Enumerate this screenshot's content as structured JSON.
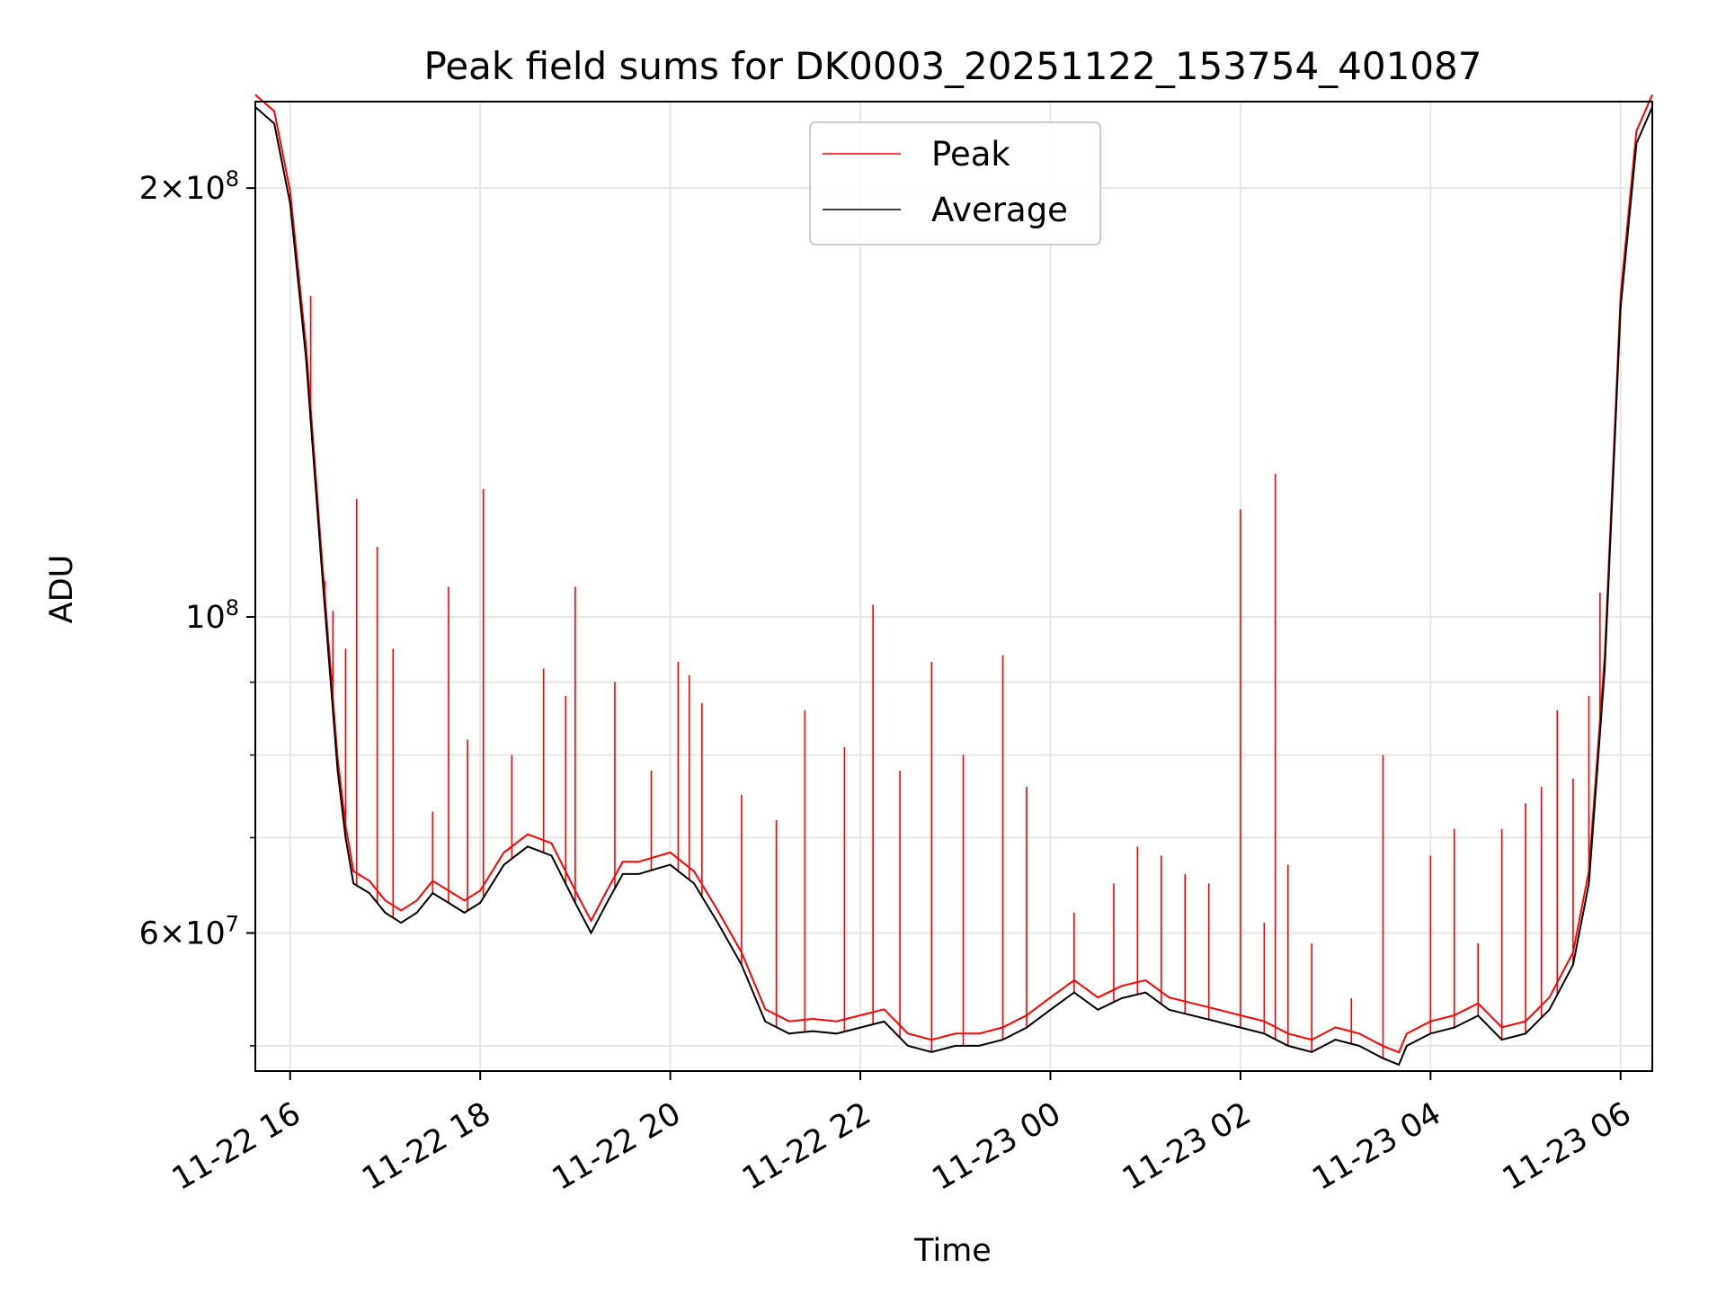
{
  "chart_data": {
    "type": "line",
    "title": "Peak field sums for DK0003_20251122_153754_401087",
    "xlabel": "Time",
    "ylabel": "ADU",
    "y_scale": "log",
    "ylim": [
      48000000,
      230000000
    ],
    "xlim": [
      "2025-11-22 15:38",
      "2025-11-23 06:20"
    ],
    "grid": true,
    "legend": "upper center",
    "x_ticks": [
      "11-22 16",
      "11-22 18",
      "11-22 20",
      "11-22 22",
      "11-23 00",
      "11-23 02",
      "11-23 04",
      "11-23 06"
    ],
    "x_tick_times": [
      "2025-11-22 16:00",
      "2025-11-22 18:00",
      "2025-11-22 20:00",
      "2025-11-22 22:00",
      "2025-11-23 00:00",
      "2025-11-23 02:00",
      "2025-11-23 04:00",
      "2025-11-23 06:00"
    ],
    "y_ticks": [
      {
        "value": 60000000,
        "mantissa": "6",
        "exponent": "7"
      },
      {
        "value": 100000000,
        "mantissa": "",
        "exponent": "8"
      },
      {
        "value": 200000000,
        "mantissa": "2",
        "exponent": "8"
      }
    ],
    "y_minor_ticks": [
      50000000,
      70000000,
      80000000,
      90000000
    ],
    "series": [
      {
        "name": "Average",
        "color": "#000000",
        "x": [
          "2025-11-22 15:38",
          "2025-11-22 15:50",
          "2025-11-22 16:00",
          "2025-11-22 16:10",
          "2025-11-22 16:20",
          "2025-11-22 16:30",
          "2025-11-22 16:35",
          "2025-11-22 16:40",
          "2025-11-22 16:50",
          "2025-11-22 17:00",
          "2025-11-22 17:10",
          "2025-11-22 17:20",
          "2025-11-22 17:30",
          "2025-11-22 17:40",
          "2025-11-22 17:50",
          "2025-11-22 18:00",
          "2025-11-22 18:15",
          "2025-11-22 18:30",
          "2025-11-22 18:45",
          "2025-11-22 19:00",
          "2025-11-22 19:10",
          "2025-11-22 19:20",
          "2025-11-22 19:30",
          "2025-11-22 19:40",
          "2025-11-22 19:50",
          "2025-11-22 20:00",
          "2025-11-22 20:15",
          "2025-11-22 20:30",
          "2025-11-22 20:45",
          "2025-11-22 21:00",
          "2025-11-22 21:15",
          "2025-11-22 21:30",
          "2025-11-22 21:45",
          "2025-11-22 22:00",
          "2025-11-22 22:15",
          "2025-11-22 22:30",
          "2025-11-22 22:45",
          "2025-11-22 23:00",
          "2025-11-22 23:15",
          "2025-11-22 23:30",
          "2025-11-22 23:45",
          "2025-11-23 00:00",
          "2025-11-23 00:15",
          "2025-11-23 00:30",
          "2025-11-23 00:45",
          "2025-11-23 01:00",
          "2025-11-23 01:15",
          "2025-11-23 01:30",
          "2025-11-23 01:45",
          "2025-11-23 02:00",
          "2025-11-23 02:15",
          "2025-11-23 02:30",
          "2025-11-23 02:45",
          "2025-11-23 03:00",
          "2025-11-23 03:15",
          "2025-11-23 03:30",
          "2025-11-23 03:40",
          "2025-11-23 03:45",
          "2025-11-23 04:00",
          "2025-11-23 04:15",
          "2025-11-23 04:30",
          "2025-11-23 04:45",
          "2025-11-23 05:00",
          "2025-11-23 05:15",
          "2025-11-23 05:30",
          "2025-11-23 05:40",
          "2025-11-23 05:50",
          "2025-11-23 06:00",
          "2025-11-23 06:10",
          "2025-11-23 06:20"
        ],
        "values": [
          228000000,
          222000000,
          195000000,
          152000000,
          108000000,
          78000000,
          70000000,
          65000000,
          64000000,
          62000000,
          61000000,
          62000000,
          64000000,
          63000000,
          62000000,
          63000000,
          67000000,
          69000000,
          68000000,
          63000000,
          60000000,
          63000000,
          66000000,
          66000000,
          66500000,
          67000000,
          65000000,
          61000000,
          57000000,
          52000000,
          51000000,
          51200000,
          51000000,
          51500000,
          52000000,
          50000000,
          49500000,
          50000000,
          50000000,
          50500000,
          51500000,
          53000000,
          54500000,
          53000000,
          54000000,
          54500000,
          53000000,
          52500000,
          52000000,
          51500000,
          51000000,
          50000000,
          49500000,
          50500000,
          50000000,
          49000000,
          48500000,
          50000000,
          51000000,
          51500000,
          52500000,
          50500000,
          51000000,
          53000000,
          57000000,
          65000000,
          92000000,
          165000000,
          215000000,
          228000000
        ]
      },
      {
        "name": "Peak",
        "color": "#ff0000",
        "x": [
          "2025-11-22 16:00",
          "2025-11-22 16:13",
          "2025-11-22 16:22",
          "2025-11-22 16:27",
          "2025-11-22 16:35",
          "2025-11-22 16:42",
          "2025-11-22 16:55",
          "2025-11-22 17:05",
          "2025-11-22 17:30",
          "2025-11-22 17:40",
          "2025-11-22 17:52",
          "2025-11-22 18:02",
          "2025-11-22 18:20",
          "2025-11-22 18:40",
          "2025-11-22 18:54",
          "2025-11-22 19:00",
          "2025-11-22 19:25",
          "2025-11-22 19:48",
          "2025-11-22 20:05",
          "2025-11-22 20:12",
          "2025-11-22 20:20",
          "2025-11-22 20:45",
          "2025-11-22 21:07",
          "2025-11-22 21:25",
          "2025-11-22 21:50",
          "2025-11-22 22:08",
          "2025-11-22 22:25",
          "2025-11-22 22:45",
          "2025-11-22 23:05",
          "2025-11-22 23:30",
          "2025-11-22 23:45",
          "2025-11-23 00:15",
          "2025-11-23 00:40",
          "2025-11-23 00:55",
          "2025-11-23 01:10",
          "2025-11-23 01:25",
          "2025-11-23 01:40",
          "2025-11-23 02:00",
          "2025-11-23 02:15",
          "2025-11-23 02:22",
          "2025-11-23 02:30",
          "2025-11-23 02:45",
          "2025-11-23 03:10",
          "2025-11-23 03:30",
          "2025-11-23 04:00",
          "2025-11-23 04:15",
          "2025-11-23 04:30",
          "2025-11-23 04:45",
          "2025-11-23 05:00",
          "2025-11-23 05:10",
          "2025-11-23 05:20",
          "2025-11-23 05:30",
          "2025-11-23 05:40",
          "2025-11-23 05:47"
        ],
        "values": [
          200000000,
          168000000,
          106000000,
          101000000,
          95000000,
          121000000,
          112000000,
          95000000,
          73000000,
          105000000,
          82000000,
          123000000,
          80000000,
          92000000,
          88000000,
          105000000,
          90000000,
          78000000,
          93000000,
          91000000,
          87000000,
          75000000,
          72000000,
          86000000,
          81000000,
          102000000,
          78000000,
          93000000,
          80000000,
          94000000,
          76000000,
          62000000,
          65000000,
          69000000,
          68000000,
          66000000,
          65000000,
          119000000,
          61000000,
          126000000,
          67000000,
          59000000,
          54000000,
          80000000,
          68000000,
          71000000,
          59000000,
          71000000,
          74000000,
          76000000,
          86000000,
          77000000,
          88000000,
          104000000
        ]
      }
    ]
  }
}
